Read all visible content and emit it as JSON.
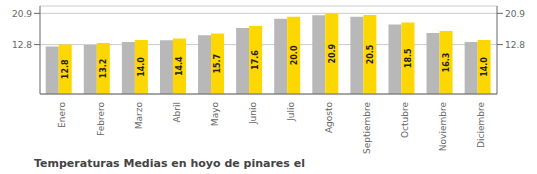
{
  "chart_data": {
    "type": "bar",
    "title": "Temperaturas Medias en hoyo de pinares el",
    "categories": [
      "Enero",
      "Febrero",
      "Marzo",
      "Abril",
      "Mayo",
      "Junio",
      "Julio",
      "Agosto",
      "Septiembre",
      "Octubre",
      "Noviembre",
      "Diciembre"
    ],
    "series": [
      {
        "color": "#B8B8B8",
        "values": [
          12.3,
          12.7,
          13.5,
          13.9,
          15.2,
          17.1,
          19.5,
          20.4,
          20.0,
          18.0,
          15.8,
          13.5
        ]
      },
      {
        "color": "#FFD700",
        "values": [
          12.8,
          13.2,
          14.0,
          14.4,
          15.7,
          17.6,
          20.0,
          20.9,
          20.5,
          18.5,
          16.3,
          14.0
        ],
        "data_labels": true,
        "value_labels": [
          "12.8",
          "13.2",
          "14.0",
          "14.4",
          "15.7",
          "17.6",
          "20.0",
          "20.9",
          "20.5",
          "18.5",
          "16.3",
          "14.0"
        ]
      }
    ],
    "ylim": [
      0,
      22.8
    ],
    "yticks": [
      12.8,
      20.9
    ],
    "grid": true
  }
}
